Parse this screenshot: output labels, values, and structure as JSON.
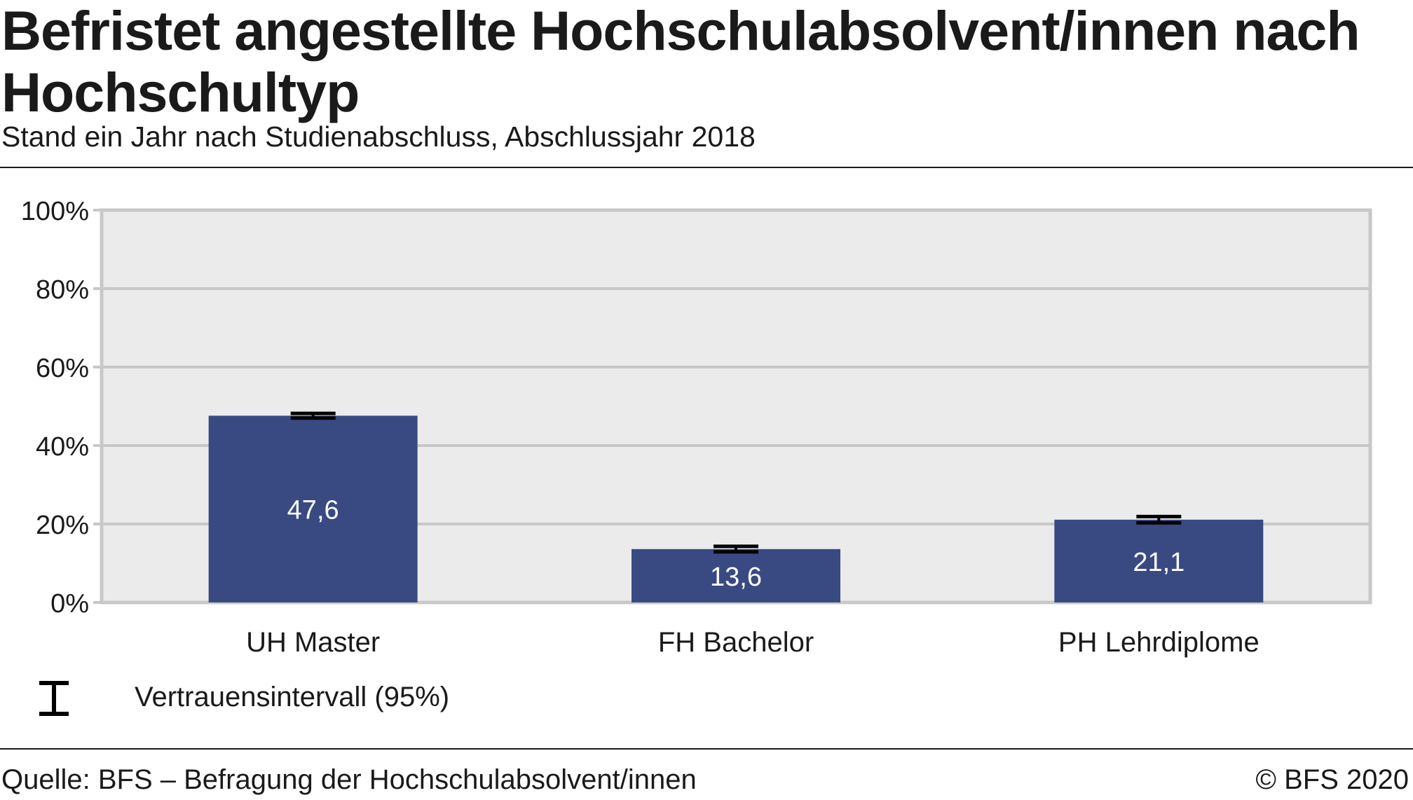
{
  "header": {
    "title": "Befristet angestellte Hochschulabsolvent/innen nach Hochschultyp",
    "subtitle": "Stand ein Jahr nach Studienabschluss, Abschlussjahr 2018"
  },
  "chart_data": {
    "type": "bar",
    "title": "Befristet angestellte Hochschulabsolvent/innen nach Hochschultyp",
    "subtitle": "Stand ein Jahr nach Studienabschluss, Abschlussjahr 2018",
    "categories": [
      "UH Master",
      "FH Bachelor",
      "PH Lehrdiplome"
    ],
    "values": [
      47.6,
      13.6,
      21.1
    ],
    "value_labels": [
      "47,6",
      "13,6",
      "21,1"
    ],
    "error_bars": [
      [
        47.0,
        48.2
      ],
      [
        12.9,
        14.3
      ],
      [
        20.3,
        21.9
      ]
    ],
    "ylim": [
      0,
      100
    ],
    "yticks": [
      0,
      20,
      40,
      60,
      80,
      100
    ],
    "ytick_labels": [
      "0%",
      "20%",
      "40%",
      "60%",
      "80%",
      "100%"
    ],
    "grid": true,
    "colors": {
      "bar": "#394a83",
      "plot_bg": "#ebebeb",
      "grid": "#c8c8c8",
      "error_bar": "#000000"
    }
  },
  "legend": {
    "icon": "confidence-interval-icon",
    "label": "Vertrauensintervall (95%)"
  },
  "footer": {
    "source": "Quelle: BFS – Befragung der Hochschulabsolvent/innen",
    "copyright": "© BFS 2020"
  }
}
